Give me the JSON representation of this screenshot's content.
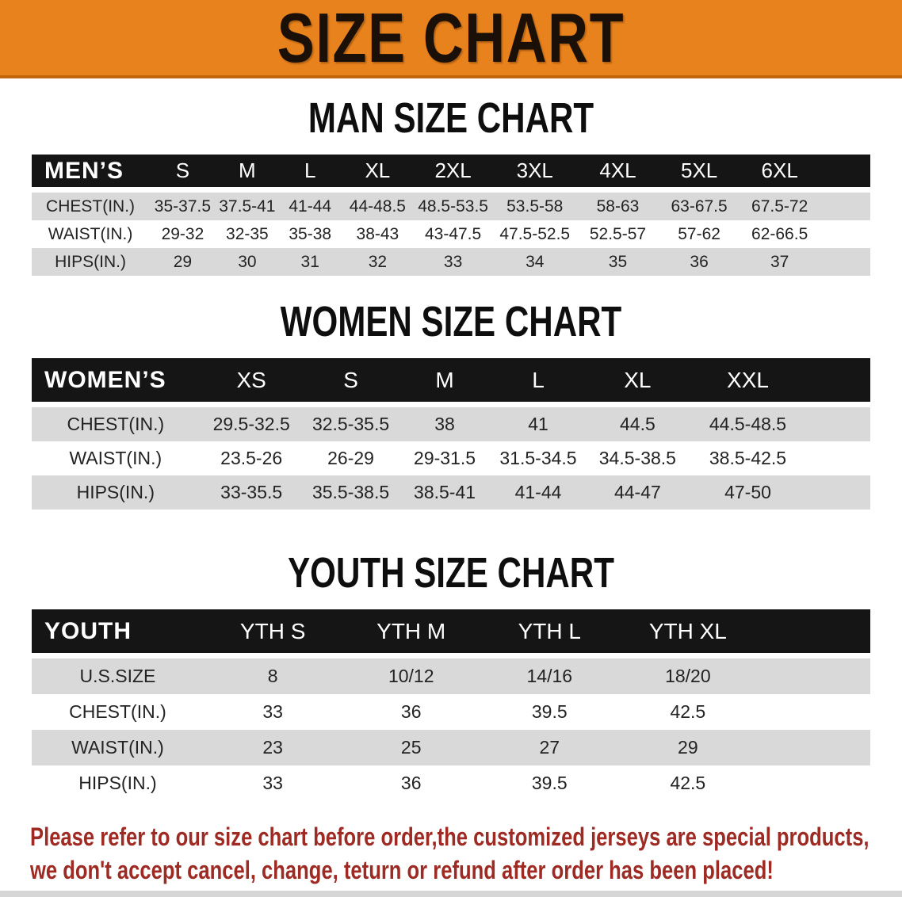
{
  "banner": {
    "title": "SIZE CHART",
    "bg_color": "#e8821c",
    "text_color": "#1a1008"
  },
  "sections": [
    {
      "heading": "MAN SIZE CHART",
      "table": {
        "header_label": "MEN’S",
        "columns": [
          "S",
          "M",
          "L",
          "XL",
          "2XL",
          "3XL",
          "4XL",
          "5XL",
          "6XL"
        ],
        "rows": [
          {
            "label": "CHEST(IN.)",
            "values": [
              "35-37.5",
              "37.5-41",
              "41-44",
              "44-48.5",
              "48.5-53.5",
              "53.5-58",
              "58-63",
              "63-67.5",
              "67.5-72"
            ]
          },
          {
            "label": "WAIST(IN.)",
            "values": [
              "29-32",
              "32-35",
              "35-38",
              "38-43",
              "43-47.5",
              "47.5-52.5",
              "52.5-57",
              "57-62",
              "62-66.5"
            ]
          },
          {
            "label": "HIPS(IN.)",
            "values": [
              "29",
              "30",
              "31",
              "32",
              "33",
              "34",
              "35",
              "36",
              "37"
            ]
          }
        ]
      }
    },
    {
      "heading": "WOMEN SIZE CHART",
      "table": {
        "header_label": "WOMEN’S",
        "columns": [
          "XS",
          "S",
          "M",
          "L",
          "XL",
          "XXL"
        ],
        "rows": [
          {
            "label": "CHEST(IN.)",
            "values": [
              "29.5-32.5",
              "32.5-35.5",
              "38",
              "41",
              "44.5",
              "44.5-48.5"
            ]
          },
          {
            "label": "WAIST(IN.)",
            "values": [
              "23.5-26",
              "26-29",
              "29-31.5",
              "31.5-34.5",
              "34.5-38.5",
              "38.5-42.5"
            ]
          },
          {
            "label": "HIPS(IN.)",
            "values": [
              "33-35.5",
              "35.5-38.5",
              "38.5-41",
              "41-44",
              "44-47",
              "47-50"
            ]
          }
        ]
      }
    },
    {
      "heading": "YOUTH SIZE CHART",
      "table": {
        "header_label": "YOUTH",
        "columns": [
          "YTH S",
          "YTH M",
          "YTH L",
          "YTH XL"
        ],
        "rows": [
          {
            "label": "U.S.SIZE",
            "values": [
              "8",
              "10/12",
              "14/16",
              "18/20"
            ]
          },
          {
            "label": "CHEST(IN.)",
            "values": [
              "33",
              "36",
              "39.5",
              "42.5"
            ]
          },
          {
            "label": "WAIST(IN.)",
            "values": [
              "23",
              "25",
              "27",
              "29"
            ]
          },
          {
            "label": "HIPS(IN.)",
            "values": [
              "33",
              "36",
              "39.5",
              "42.5"
            ]
          }
        ]
      }
    }
  ],
  "disclaimer": {
    "lines": [
      "Please refer to our size chart before order,the customized jerseys are special products,",
      "we don't accept cancel, change, teturn or refund after order has been placed!"
    ],
    "color": "#9e2a24"
  },
  "colors": {
    "header_row_bg": "#151515",
    "stripe_gray": "#d9d9d9",
    "stripe_white": "#ffffff"
  }
}
